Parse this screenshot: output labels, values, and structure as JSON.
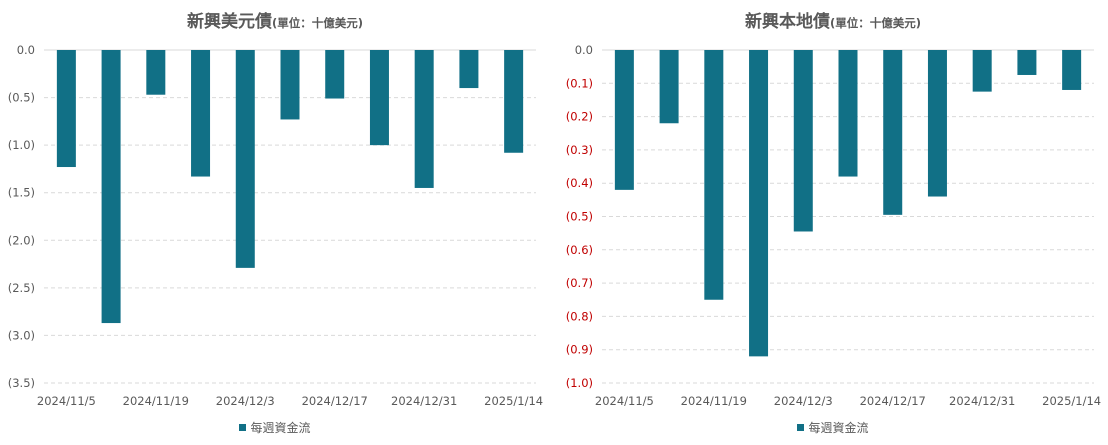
{
  "colors": {
    "bar": "#117086",
    "grid": "#d9d9d9",
    "tick_text": "#595959",
    "negative_tick_text": "#c00000",
    "title_text": "#595959"
  },
  "chart_data": [
    {
      "type": "bar",
      "title": "新興美元債",
      "unit_note": "(單位：十億美元)",
      "ylim": [
        -3.5,
        0
      ],
      "y_ticks": [
        "0.0",
        "(0.5)",
        "(1.0)",
        "(1.5)",
        "(2.0)",
        "(2.5)",
        "(3.0)",
        "(3.5)"
      ],
      "y_tick_values": [
        0,
        -0.5,
        -1.0,
        -1.5,
        -2.0,
        -2.5,
        -3.0,
        -3.5
      ],
      "negative_tick_color": false,
      "x_tick_labels": [
        "2024/11/5",
        "2024/11/19",
        "2024/12/3",
        "2024/12/17",
        "2024/12/31",
        "2025/1/14"
      ],
      "grid": "horizontal-dashed",
      "legend_position": "bottom",
      "series": [
        {
          "name": "每週資金流",
          "values": [
            -1.23,
            -2.87,
            -0.47,
            -1.33,
            -2.29,
            -0.73,
            -0.51,
            -1.0,
            -1.45,
            -0.4,
            -1.08
          ]
        }
      ]
    },
    {
      "type": "bar",
      "title": "新興本地債",
      "unit_note": "(單位：十億美元)",
      "ylim": [
        -1.0,
        0
      ],
      "y_ticks": [
        "0.0",
        "(0.1)",
        "(0.2)",
        "(0.3)",
        "(0.4)",
        "(0.5)",
        "(0.6)",
        "(0.7)",
        "(0.8)",
        "(0.9)",
        "(1.0)"
      ],
      "y_tick_values": [
        0,
        -0.1,
        -0.2,
        -0.3,
        -0.4,
        -0.5,
        -0.6,
        -0.7,
        -0.8,
        -0.9,
        -1.0
      ],
      "negative_tick_color": true,
      "x_tick_labels": [
        "2024/11/5",
        "2024/11/19",
        "2024/12/3",
        "2024/12/17",
        "2024/12/31",
        "2025/1/14"
      ],
      "grid": "horizontal-dashed",
      "legend_position": "bottom",
      "series": [
        {
          "name": "每週資金流",
          "values": [
            -0.42,
            -0.22,
            -0.75,
            -0.92,
            -0.545,
            -0.38,
            -0.495,
            -0.44,
            -0.125,
            -0.075,
            -0.12
          ]
        }
      ]
    }
  ]
}
